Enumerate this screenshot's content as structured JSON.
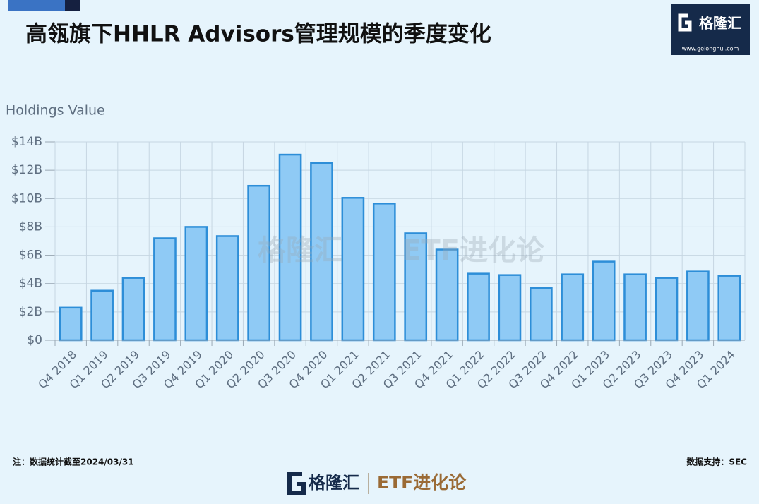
{
  "chart_data": {
    "type": "bar",
    "title": "高瓴旗下HHLR Advisors管理规模的季度变化",
    "y_label": "Holdings Value",
    "categories": [
      "Q4 2018",
      "Q1 2019",
      "Q2 2019",
      "Q3 2019",
      "Q4 2019",
      "Q1 2020",
      "Q2 2020",
      "Q3 2020",
      "Q4 2020",
      "Q1 2021",
      "Q2 2021",
      "Q3 2021",
      "Q4 2021",
      "Q1 2022",
      "Q2 2022",
      "Q3 2022",
      "Q4 2022",
      "Q1 2023",
      "Q2 2023",
      "Q3 2023",
      "Q4 2023",
      "Q1 2024"
    ],
    "values": [
      2.3,
      3.5,
      4.4,
      7.2,
      8.0,
      7.35,
      10.9,
      13.1,
      12.5,
      10.05,
      9.65,
      7.55,
      6.4,
      4.7,
      4.6,
      3.7,
      4.65,
      5.55,
      4.65,
      4.4,
      4.85,
      4.55
    ],
    "color": "#8fcaf5",
    "edge_color": "#2d8ed8",
    "ylim": [
      0,
      14
    ],
    "yticks": [
      {
        "value": 0,
        "label": "$0"
      },
      {
        "value": 2,
        "label": "$2B"
      },
      {
        "value": 4,
        "label": "$4B"
      },
      {
        "value": 6,
        "label": "$6B"
      },
      {
        "value": 8,
        "label": "$8B"
      },
      {
        "value": 10,
        "label": "$10B"
      },
      {
        "value": 12,
        "label": "$12B"
      },
      {
        "value": 14,
        "label": "$14B"
      }
    ],
    "grid": true,
    "note": "注：数据统计截至2024/03/31",
    "source": "数据支持：SEC",
    "logo_text": "格隆汇",
    "logo_url": "www.gelonghui.com",
    "watermark": "ETF进化论"
  }
}
